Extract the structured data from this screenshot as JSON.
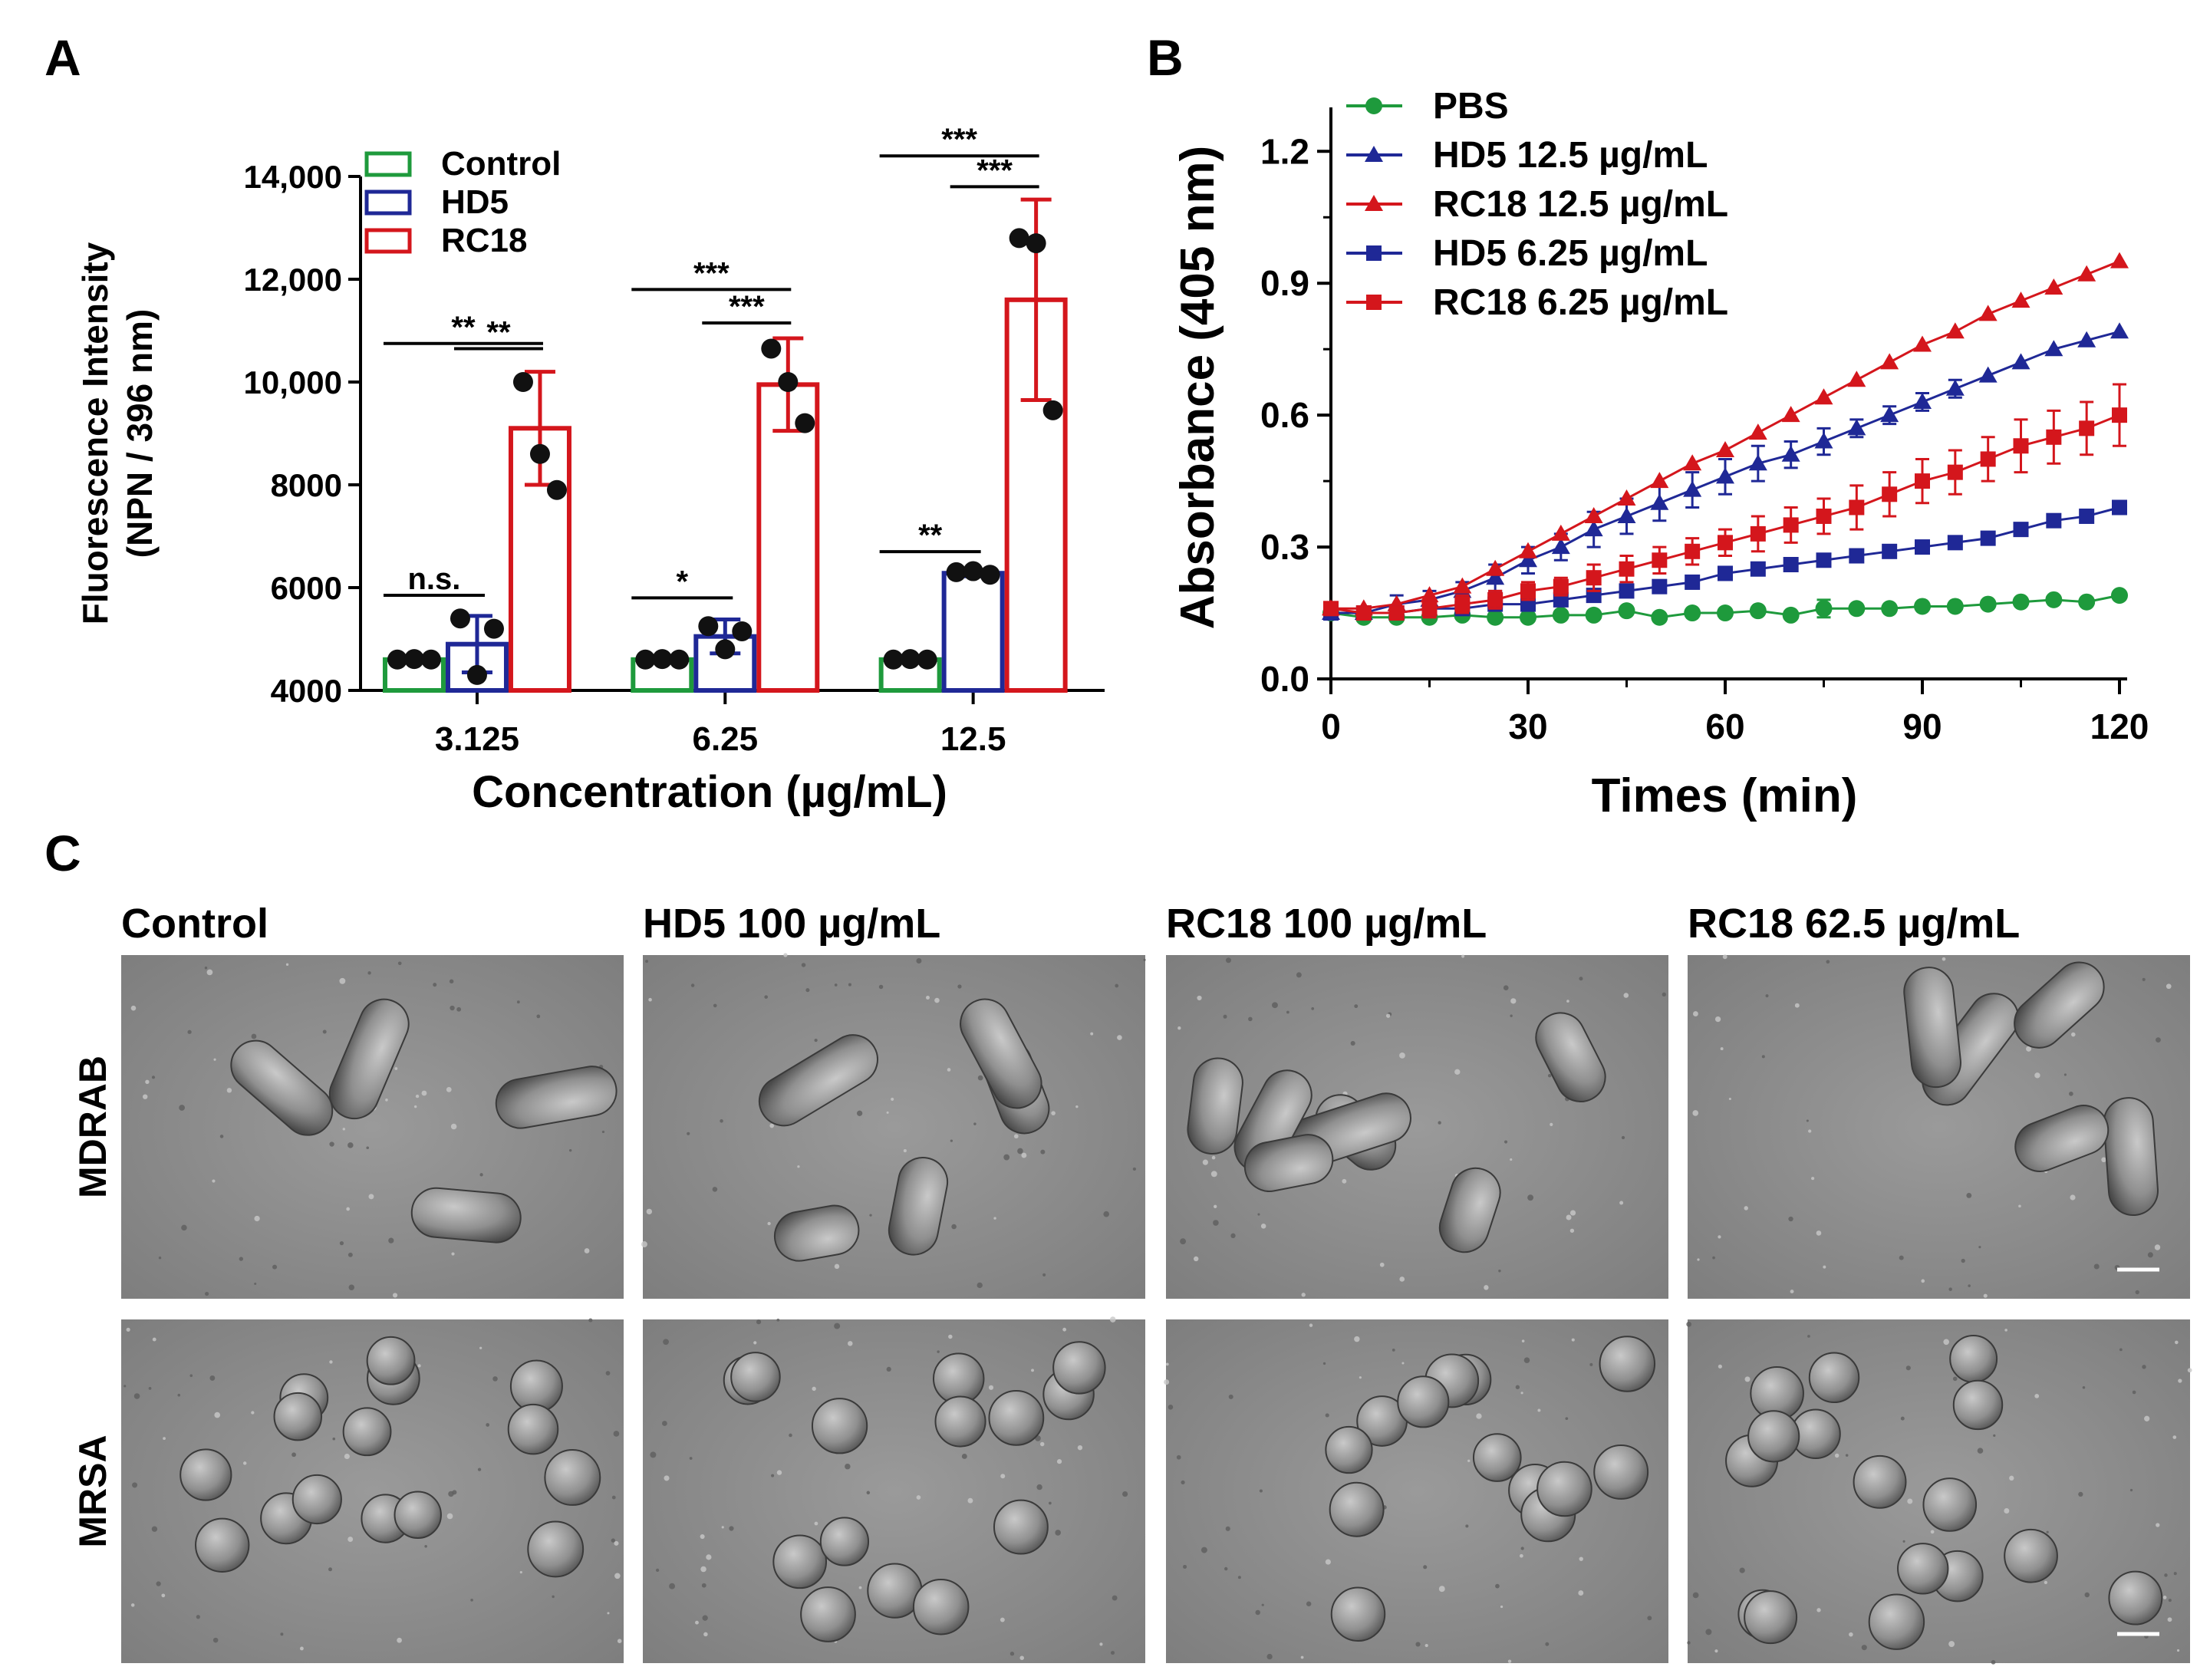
{
  "panels": {
    "a": {
      "letter": "A"
    },
    "b": {
      "letter": "B"
    },
    "c": {
      "letter": "C"
    }
  },
  "chart_data": [
    {
      "type": "bar",
      "panel": "A",
      "categories": [
        "3.125",
        "6.25",
        "12.5"
      ],
      "xlabel": "Concentration (µg/mL)",
      "ylabel_line1": "Fluorescence Intensity",
      "ylabel_line2": "(NPN / 396 nm)",
      "ylim": [
        4000,
        14000
      ],
      "yticks": [
        4000,
        6000,
        8000,
        10000,
        12000,
        14000
      ],
      "ytick_labels": [
        "4000",
        "6000",
        "8000",
        "10,000",
        "12,000",
        "14,000"
      ],
      "legend_position": "top-left",
      "series": [
        {
          "name": "Control",
          "color": "#1e9a3c",
          "values": [
            4600,
            4600,
            4600
          ],
          "errors": [
            60,
            60,
            60
          ],
          "points": [
            [
              4600,
              4610,
              4600
            ],
            [
              4600,
              4610,
              4600
            ],
            [
              4600,
              4610,
              4600
            ]
          ]
        },
        {
          "name": "HD5",
          "color": "#1f2896",
          "values": [
            4900,
            5050,
            6280
          ],
          "errors": [
            550,
            330,
            60
          ],
          "points": [
            [
              5400,
              4300,
              5200
            ],
            [
              5250,
              4800,
              5150
            ],
            [
              6300,
              6320,
              6250
            ]
          ]
        },
        {
          "name": "RC18",
          "color": "#d4161c",
          "values": [
            9100,
            9950,
            11600
          ],
          "errors": [
            1100,
            900,
            1950
          ],
          "points": [
            [
              10000,
              8600,
              7900
            ],
            [
              10650,
              10000,
              9200
            ],
            [
              12800,
              12700,
              9450
            ]
          ]
        }
      ],
      "annotations": [
        {
          "category": 0,
          "from": 0,
          "to": 2,
          "label": "**",
          "y": 10750
        },
        {
          "category": 0,
          "from": 1,
          "to": 2,
          "label": "**",
          "y": 10650
        },
        {
          "category": 0,
          "from": 0,
          "to": 1,
          "label": "n.s.",
          "y": 5850
        },
        {
          "category": 1,
          "from": 0,
          "to": 2,
          "label": "***",
          "y": 11800
        },
        {
          "category": 1,
          "from": 1,
          "to": 2,
          "label": "***",
          "y": 11150
        },
        {
          "category": 1,
          "from": 0,
          "to": 1,
          "label": "*",
          "y": 5800
        },
        {
          "category": 2,
          "from": 0,
          "to": 2,
          "label": "***",
          "y": 14400
        },
        {
          "category": 2,
          "from": 1,
          "to": 2,
          "label": "***",
          "y": 13800
        },
        {
          "category": 2,
          "from": 0,
          "to": 1,
          "label": "**",
          "y": 6700
        }
      ]
    },
    {
      "type": "line",
      "panel": "B",
      "xlabel": "Times (min)",
      "ylabel": "Absorbance (405 nm)",
      "xlim": [
        0,
        120
      ],
      "ylim": [
        0,
        1.3
      ],
      "xticks": [
        0,
        30,
        60,
        90,
        120
      ],
      "ytick_labels": [
        "0.0",
        "0.3",
        "0.6",
        "0.9",
        "1.2"
      ],
      "yticks": [
        0,
        0.3,
        0.6,
        0.9,
        1.2
      ],
      "legend_position": "top-left",
      "x": [
        0,
        5,
        10,
        15,
        20,
        25,
        30,
        35,
        40,
        45,
        50,
        55,
        60,
        65,
        70,
        75,
        80,
        85,
        90,
        95,
        100,
        105,
        110,
        115,
        120
      ],
      "series": [
        {
          "name": "PBS",
          "color": "#1e9a3c",
          "marker": "circle",
          "values": [
            0.15,
            0.14,
            0.14,
            0.14,
            0.145,
            0.14,
            0.14,
            0.145,
            0.145,
            0.155,
            0.14,
            0.15,
            0.15,
            0.155,
            0.145,
            0.16,
            0.16,
            0.16,
            0.165,
            0.165,
            0.17,
            0.175,
            0.18,
            0.175,
            0.19
          ],
          "errors": [
            0.01,
            0.01,
            0.01,
            0.01,
            0.01,
            0.01,
            0.01,
            0.01,
            0.01,
            0.01,
            0.01,
            0.01,
            0.01,
            0.01,
            0.01,
            0.02,
            0.01,
            0.01,
            0.01,
            0.01,
            0.01,
            0.01,
            0.01,
            0.01,
            0.01
          ]
        },
        {
          "name": "HD5 12.5 µg/mL",
          "color": "#1f2896",
          "marker": "triangle",
          "values": [
            0.15,
            0.15,
            0.17,
            0.18,
            0.2,
            0.23,
            0.27,
            0.3,
            0.34,
            0.37,
            0.4,
            0.43,
            0.46,
            0.49,
            0.51,
            0.54,
            0.57,
            0.6,
            0.63,
            0.66,
            0.69,
            0.72,
            0.75,
            0.77,
            0.79
          ],
          "errors": [
            0.01,
            0.01,
            0.02,
            0.02,
            0.02,
            0.03,
            0.03,
            0.03,
            0.04,
            0.04,
            0.04,
            0.04,
            0.04,
            0.04,
            0.03,
            0.03,
            0.02,
            0.02,
            0.02,
            0.02,
            0.01,
            0.01,
            0.01,
            0.01,
            0.01
          ]
        },
        {
          "name": "RC18 12.5 µg/mL",
          "color": "#d4161c",
          "marker": "triangle",
          "values": [
            0.16,
            0.16,
            0.17,
            0.19,
            0.21,
            0.25,
            0.29,
            0.33,
            0.37,
            0.41,
            0.45,
            0.49,
            0.52,
            0.56,
            0.6,
            0.64,
            0.68,
            0.72,
            0.76,
            0.79,
            0.83,
            0.86,
            0.89,
            0.92,
            0.95
          ]
        },
        {
          "name": "HD5 6.25 µg/mL",
          "color": "#1f2896",
          "marker": "square",
          "values": [
            0.15,
            0.15,
            0.15,
            0.16,
            0.16,
            0.17,
            0.17,
            0.18,
            0.19,
            0.2,
            0.21,
            0.22,
            0.24,
            0.25,
            0.26,
            0.27,
            0.28,
            0.29,
            0.3,
            0.31,
            0.32,
            0.34,
            0.36,
            0.37,
            0.39
          ],
          "errors": [
            0.01,
            0.01,
            0.01,
            0.01,
            0.01,
            0.01,
            0.01,
            0.01,
            0.01,
            0.01,
            0.01,
            0.01,
            0.01,
            0.01,
            0.01,
            0.01,
            0.01,
            0.01,
            0.01,
            0.01,
            0.01,
            0.01,
            0.01,
            0.01,
            0.01
          ]
        },
        {
          "name": "RC18 6.25 µg/mL",
          "color": "#d4161c",
          "marker": "square",
          "values": [
            0.16,
            0.15,
            0.15,
            0.16,
            0.17,
            0.18,
            0.2,
            0.21,
            0.23,
            0.25,
            0.27,
            0.29,
            0.31,
            0.33,
            0.35,
            0.37,
            0.39,
            0.42,
            0.45,
            0.47,
            0.5,
            0.53,
            0.55,
            0.57,
            0.6
          ],
          "errors": [
            0.01,
            0.01,
            0.01,
            0.02,
            0.02,
            0.02,
            0.02,
            0.02,
            0.03,
            0.03,
            0.03,
            0.03,
            0.03,
            0.04,
            0.04,
            0.04,
            0.05,
            0.05,
            0.05,
            0.05,
            0.05,
            0.06,
            0.06,
            0.06,
            0.07
          ]
        }
      ]
    }
  ],
  "micrographs": {
    "column_labels": [
      "Control",
      "HD5 100 µg/mL",
      "RC18 100 µg/mL",
      "RC18   62.5 µg/mL"
    ],
    "row_labels": [
      "MDRAB",
      "MRSA"
    ]
  }
}
